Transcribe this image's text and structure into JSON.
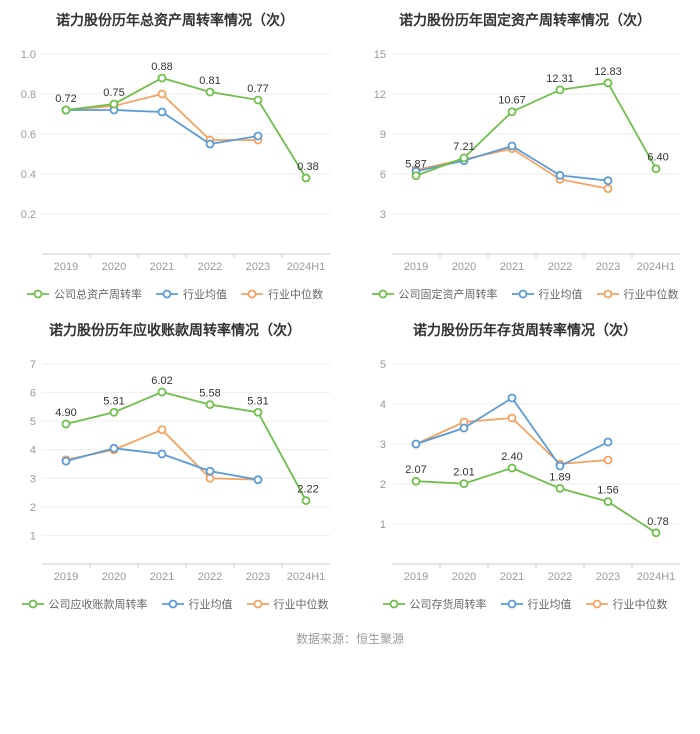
{
  "source_text": "数据来源：恒生聚源",
  "categories": [
    "2019",
    "2020",
    "2021",
    "2022",
    "2023",
    "2024H1"
  ],
  "colors": {
    "company": "#6fbf4b",
    "industry_avg": "#5b9bd5",
    "industry_median": "#f4a261",
    "grid": "#eeeeee",
    "axis": "#cccccc",
    "tick_text": "#999999",
    "label_text": "#333333",
    "background": "#ffffff"
  },
  "marker": {
    "radius": 3.5,
    "hollow": true,
    "line_width": 1.8
  },
  "title_fontsize": 14,
  "tick_fontsize": 11,
  "label_fontsize": 11,
  "charts": [
    {
      "title": "诺力股份历年总资产周转率情况（次）",
      "ylim": [
        0,
        1
      ],
      "ytick_step": 0.2,
      "y_decimals": 1,
      "series": [
        {
          "key": "company",
          "name": "公司总资产周转率",
          "values": [
            0.72,
            0.75,
            0.88,
            0.81,
            0.77,
            0.38
          ],
          "show_labels": true,
          "label_decimals": 2
        },
        {
          "key": "industry_avg",
          "name": "行业均值",
          "values": [
            0.72,
            0.72,
            0.71,
            0.55,
            0.59,
            null
          ],
          "show_labels": false
        },
        {
          "key": "industry_median",
          "name": "行业中位数",
          "values": [
            0.72,
            0.74,
            0.8,
            0.57,
            0.57,
            null
          ],
          "show_labels": false
        }
      ]
    },
    {
      "title": "诺力股份历年固定资产周转率情况（次）",
      "ylim": [
        0,
        15
      ],
      "ytick_step": 3,
      "y_decimals": 0,
      "series": [
        {
          "key": "company",
          "name": "公司固定资产周转率",
          "values": [
            5.87,
            7.21,
            10.67,
            12.31,
            12.83,
            6.4
          ],
          "show_labels": true,
          "label_decimals": 2
        },
        {
          "key": "industry_avg",
          "name": "行业均值",
          "values": [
            6.2,
            7.0,
            8.1,
            5.9,
            5.5,
            null
          ],
          "show_labels": false
        },
        {
          "key": "industry_median",
          "name": "行业中位数",
          "values": [
            6.3,
            7.1,
            7.9,
            5.6,
            4.9,
            null
          ],
          "show_labels": false
        }
      ]
    },
    {
      "title": "诺力股份历年应收账款周转率情况（次）",
      "ylim": [
        0,
        7
      ],
      "ytick_step": 1,
      "y_decimals": 0,
      "series": [
        {
          "key": "company",
          "name": "公司应收账款周转率",
          "values": [
            4.9,
            5.31,
            6.02,
            5.58,
            5.31,
            2.22
          ],
          "show_labels": true,
          "label_decimals": 2
        },
        {
          "key": "industry_avg",
          "name": "行业均值",
          "values": [
            3.6,
            4.05,
            3.85,
            3.25,
            2.95,
            null
          ],
          "show_labels": false
        },
        {
          "key": "industry_median",
          "name": "行业中位数",
          "values": [
            3.65,
            4.0,
            4.7,
            3.0,
            2.95,
            null
          ],
          "show_labels": false
        }
      ]
    },
    {
      "title": "诺力股份历年存货周转率情况（次）",
      "ylim": [
        0,
        5
      ],
      "ytick_step": 1,
      "y_decimals": 0,
      "series": [
        {
          "key": "company",
          "name": "公司存货周转率",
          "values": [
            2.07,
            2.01,
            2.4,
            1.89,
            1.56,
            0.78
          ],
          "show_labels": true,
          "label_decimals": 2
        },
        {
          "key": "industry_avg",
          "name": "行业均值",
          "values": [
            3.0,
            3.4,
            4.15,
            2.45,
            3.05,
            null
          ],
          "show_labels": false
        },
        {
          "key": "industry_median",
          "name": "行业中位数",
          "values": [
            3.0,
            3.55,
            3.65,
            2.5,
            2.6,
            null
          ],
          "show_labels": false
        }
      ]
    }
  ]
}
